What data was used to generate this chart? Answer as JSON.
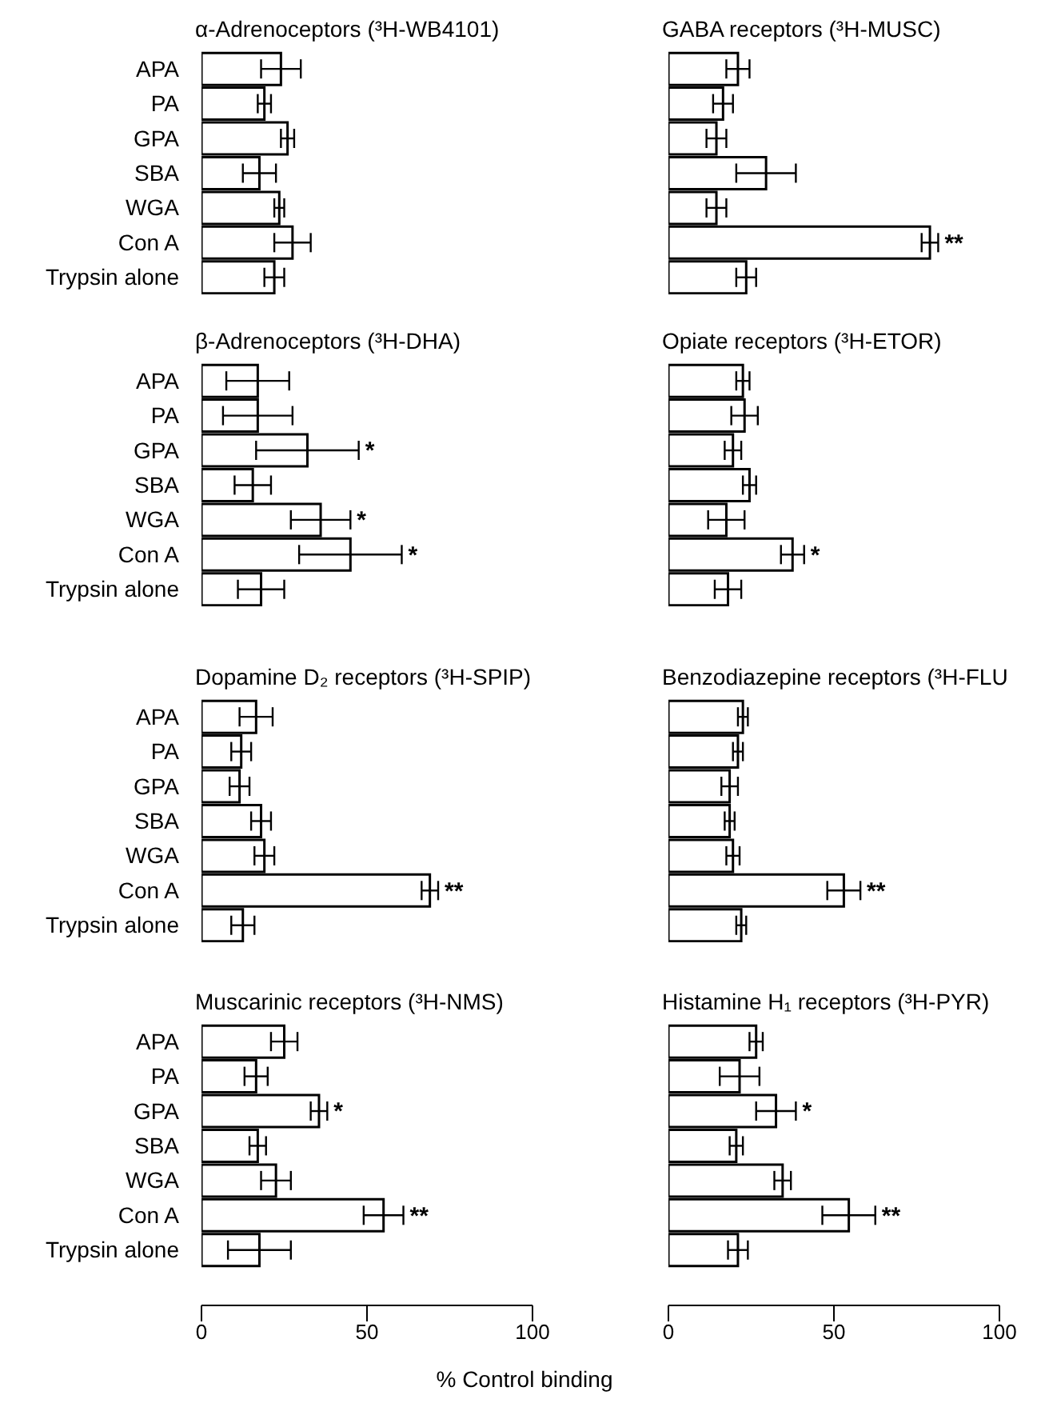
{
  "chart_data": [
    {
      "type": "bar",
      "orientation": "horizontal",
      "title": "α-Adrenoceptors (³H-WB4101)",
      "categories": [
        "APA",
        "PA",
        "GPA",
        "SBA",
        "WGA",
        "Con A",
        "Trypsin alone"
      ],
      "values": [
        24,
        19,
        26,
        17.5,
        23.5,
        27.5,
        22
      ],
      "errors": [
        6,
        2,
        2,
        5,
        1.5,
        5.5,
        3
      ],
      "color": "#ffffff",
      "xlim": [
        0,
        100
      ],
      "xticks": [
        0,
        50,
        100
      ],
      "tick_labels": "y"
    },
    {
      "type": "bar",
      "orientation": "horizontal",
      "title": "GABA receptors (³H-MUSC)",
      "categories": [
        "APA",
        "PA",
        "GPA",
        "SBA",
        "WGA",
        "Con A",
        "Trypsin alone"
      ],
      "values": [
        21,
        16.5,
        14.5,
        29.5,
        14.5,
        79,
        23.5
      ],
      "errors": [
        3.5,
        3,
        3,
        9,
        3,
        2.5,
        3
      ],
      "color": "#ffffff",
      "xlim": [
        0,
        100
      ],
      "xticks": [
        0,
        50,
        100
      ],
      "tick_labels": false,
      "annotations": [
        {
          "text": "**",
          "x": 81.5,
          "y": "Con A"
        }
      ]
    },
    {
      "type": "bar",
      "orientation": "horizontal",
      "title": "β-Adrenoceptors (³H-DHA)",
      "categories": [
        "APA",
        "PA",
        "GPA",
        "SBA",
        "WGA",
        "Con A",
        "Trypsin alone"
      ],
      "values": [
        17,
        17,
        32,
        15.5,
        36,
        45,
        18
      ],
      "errors": [
        9.5,
        10.5,
        15.5,
        5.5,
        9,
        15.5,
        7
      ],
      "color": "#ffffff",
      "xlim": [
        0,
        100
      ],
      "xticks": [
        0,
        50,
        100
      ],
      "tick_labels": "y",
      "annotations": [
        {
          "text": "*",
          "x": 47.5,
          "y": "GPA"
        },
        {
          "text": "*",
          "x": 45,
          "y": "WGA"
        },
        {
          "text": "*",
          "x": 60.5,
          "y": "Con A"
        }
      ]
    },
    {
      "type": "bar",
      "orientation": "horizontal",
      "title": "Opiate receptors (³H-ETOR)",
      "categories": [
        "APA",
        "PA",
        "GPA",
        "SBA",
        "WGA",
        "Con A",
        "Trypsin alone"
      ],
      "values": [
        22.5,
        23,
        19.5,
        24.5,
        17.5,
        37.5,
        18
      ],
      "errors": [
        2,
        4,
        2.5,
        2,
        5.5,
        3.5,
        4
      ],
      "color": "#ffffff",
      "xlim": [
        0,
        100
      ],
      "xticks": [
        0,
        50,
        100
      ],
      "tick_labels": false,
      "annotations": [
        {
          "text": "*",
          "x": 41,
          "y": "Con A"
        }
      ]
    },
    {
      "type": "bar",
      "orientation": "horizontal",
      "title": "Dopamine D₂ receptors (³H-SPIP)",
      "categories": [
        "APA",
        "PA",
        "GPA",
        "SBA",
        "WGA",
        "Con A",
        "Trypsin alone"
      ],
      "values": [
        16.5,
        12,
        11.5,
        18,
        19,
        69,
        12.5
      ],
      "errors": [
        5,
        3,
        3,
        3,
        3,
        2.5,
        3.5
      ],
      "color": "#ffffff",
      "xlim": [
        0,
        100
      ],
      "xticks": [
        0,
        50,
        100
      ],
      "tick_labels": "y",
      "annotations": [
        {
          "text": "**",
          "x": 71.5,
          "y": "Con A"
        }
      ]
    },
    {
      "type": "bar",
      "orientation": "horizontal",
      "title": "Benzodiazepine receptors (³H-FLU",
      "categories": [
        "APA",
        "PA",
        "GPA",
        "SBA",
        "WGA",
        "Con A",
        "Trypsin alone"
      ],
      "values": [
        22.5,
        21,
        18.5,
        18.5,
        19.5,
        53,
        22
      ],
      "errors": [
        1.5,
        1.5,
        2.5,
        1.5,
        2,
        5,
        1.5
      ],
      "color": "#ffffff",
      "xlim": [
        0,
        100
      ],
      "xticks": [
        0,
        50,
        100
      ],
      "tick_labels": false,
      "annotations": [
        {
          "text": "**",
          "x": 58,
          "y": "Con A"
        }
      ]
    },
    {
      "type": "bar",
      "orientation": "horizontal",
      "title": "Muscarinic receptors (³H-NMS)",
      "categories": [
        "APA",
        "PA",
        "GPA",
        "SBA",
        "WGA",
        "Con A",
        "Trypsin alone"
      ],
      "values": [
        25,
        16.5,
        35.5,
        17,
        22.5,
        55,
        17.5
      ],
      "errors": [
        4,
        3.5,
        2.5,
        2.5,
        4.5,
        6,
        9.5
      ],
      "color": "#ffffff",
      "xlim": [
        0,
        100
      ],
      "xticks": [
        0,
        50,
        100
      ],
      "xlabel": "% Control binding",
      "annotations": [
        {
          "text": "*",
          "x": 38,
          "y": "GPA"
        },
        {
          "text": "**",
          "x": 61,
          "y": "Con A"
        }
      ]
    },
    {
      "type": "bar",
      "orientation": "horizontal",
      "title": "Histamine H₁ receptors (³H-PYR)",
      "categories": [
        "APA",
        "PA",
        "GPA",
        "SBA",
        "WGA",
        "Con A",
        "Trypsin alone"
      ],
      "values": [
        26.5,
        21.5,
        32.5,
        20.5,
        34.5,
        54.5,
        21
      ],
      "errors": [
        2,
        6,
        6,
        2,
        2.5,
        8,
        3
      ],
      "color": "#ffffff",
      "xlim": [
        0,
        100
      ],
      "xticks": [
        0,
        50,
        100
      ],
      "tick_labels": "x",
      "annotations": [
        {
          "text": "*",
          "x": 38.5,
          "y": "GPA"
        },
        {
          "text": "**",
          "x": 62.5,
          "y": "Con A"
        }
      ]
    }
  ]
}
